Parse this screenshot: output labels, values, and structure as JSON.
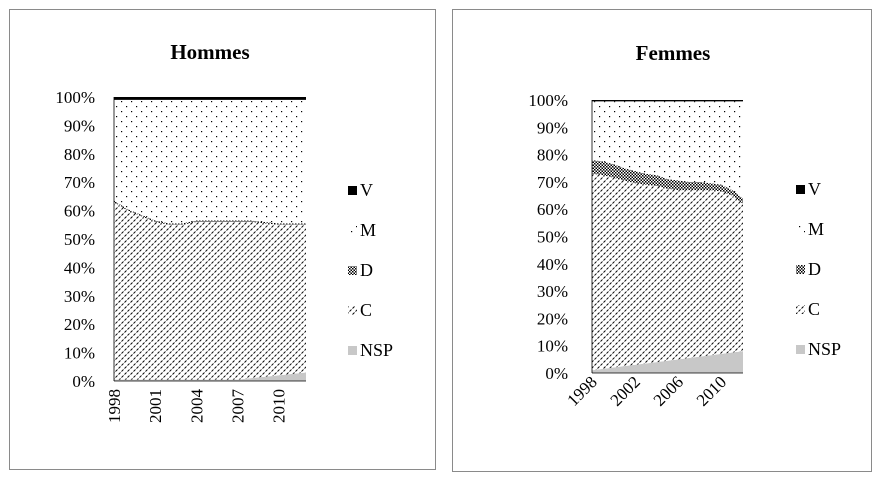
{
  "charts": [
    {
      "type": "area",
      "title": "Hommes",
      "stacked": "percent",
      "x_tick_labels": [
        "1998",
        "2001",
        "2004",
        "2007",
        "2010"
      ],
      "x_tick_rotation": "vertical",
      "y_ticks": [
        "0%",
        "10%",
        "20%",
        "30%",
        "40%",
        "50%",
        "60%",
        "70%",
        "80%",
        "90%",
        "100%"
      ],
      "ylim": [
        0,
        100
      ],
      "legend_position": "right",
      "years": [
        1998,
        1999,
        2000,
        2001,
        2002,
        2003,
        2004,
        2005,
        2006,
        2007,
        2008,
        2009,
        2010,
        2011,
        2012
      ],
      "series": [
        {
          "name": "NSP",
          "color": "#c8c8c8",
          "pattern": "solid-gray",
          "values": [
            0.5,
            0.5,
            0.5,
            0.5,
            0.5,
            0.5,
            0.5,
            0.5,
            0.5,
            0.5,
            1,
            1.5,
            2,
            2.5,
            3
          ]
        },
        {
          "name": "C",
          "color": "#000000",
          "pattern": "diagonal-dashes",
          "values": [
            62.5,
            59.5,
            57.5,
            55.5,
            54.5,
            54.5,
            55.5,
            55.5,
            55.5,
            55.5,
            55,
            54,
            53,
            52.5,
            52
          ]
        },
        {
          "name": "D",
          "color": "#000000",
          "pattern": "checker",
          "values": [
            0.5,
            0.5,
            0.5,
            0.5,
            0.5,
            0.5,
            0.5,
            0.5,
            0.5,
            0.5,
            0.5,
            0.5,
            0.5,
            0.5,
            0.5
          ]
        },
        {
          "name": "M",
          "color": "#000000",
          "pattern": "sparse-dots",
          "values": [
            35.5,
            38.5,
            40.5,
            42.5,
            43.5,
            43.5,
            42.5,
            42.5,
            42.5,
            42.5,
            42.5,
            43,
            43.5,
            43.5,
            43.5
          ]
        },
        {
          "name": "V",
          "color": "#000000",
          "pattern": "solid-black",
          "values": [
            1,
            1,
            1,
            1,
            1,
            1,
            1,
            1,
            1,
            1,
            1,
            1,
            1,
            1,
            1
          ]
        }
      ]
    },
    {
      "type": "area",
      "title": "Femmes",
      "stacked": "percent",
      "x_tick_labels": [
        "1998",
        "2002",
        "2006",
        "2010"
      ],
      "x_tick_rotation": "diagonal",
      "y_ticks": [
        "0%",
        "10%",
        "20%",
        "30%",
        "40%",
        "50%",
        "60%",
        "70%",
        "80%",
        "90%",
        "100%"
      ],
      "ylim": [
        0,
        100
      ],
      "legend_position": "right",
      "years": [
        1998,
        1999,
        2000,
        2001,
        2002,
        2003,
        2004,
        2005,
        2006,
        2007,
        2008,
        2009,
        2010,
        2011,
        2012
      ],
      "series": [
        {
          "name": "NSP",
          "color": "#c8c8c8",
          "pattern": "solid-gray",
          "values": [
            1,
            1.5,
            2,
            2.5,
            3,
            3.5,
            4,
            4.5,
            5,
            5.5,
            6,
            6.5,
            7,
            7.5,
            8
          ]
        },
        {
          "name": "C",
          "color": "#000000",
          "pattern": "diagonal-dashes",
          "values": [
            72,
            71,
            69.5,
            68,
            66.5,
            65.5,
            64.5,
            63,
            62,
            61.5,
            61,
            60.5,
            59.5,
            57.5,
            54
          ]
        },
        {
          "name": "D",
          "color": "#000000",
          "pattern": "checker",
          "values": [
            5,
            5,
            5,
            4.5,
            4.5,
            4,
            4,
            3.5,
            3.5,
            3,
            3,
            2.5,
            2.5,
            2,
            2
          ]
        },
        {
          "name": "M",
          "color": "#000000",
          "pattern": "sparse-dots",
          "values": [
            21.5,
            22,
            23,
            24.5,
            25.5,
            26.5,
            27,
            28.5,
            29,
            29.5,
            29.5,
            30,
            30.5,
            32.5,
            35.5
          ]
        },
        {
          "name": "V",
          "color": "#000000",
          "pattern": "solid-black",
          "values": [
            0.5,
            0.5,
            0.5,
            0.5,
            0.5,
            0.5,
            0.5,
            0.5,
            0.5,
            0.5,
            0.5,
            0.5,
            0.5,
            0.5,
            0.5
          ]
        }
      ]
    }
  ]
}
